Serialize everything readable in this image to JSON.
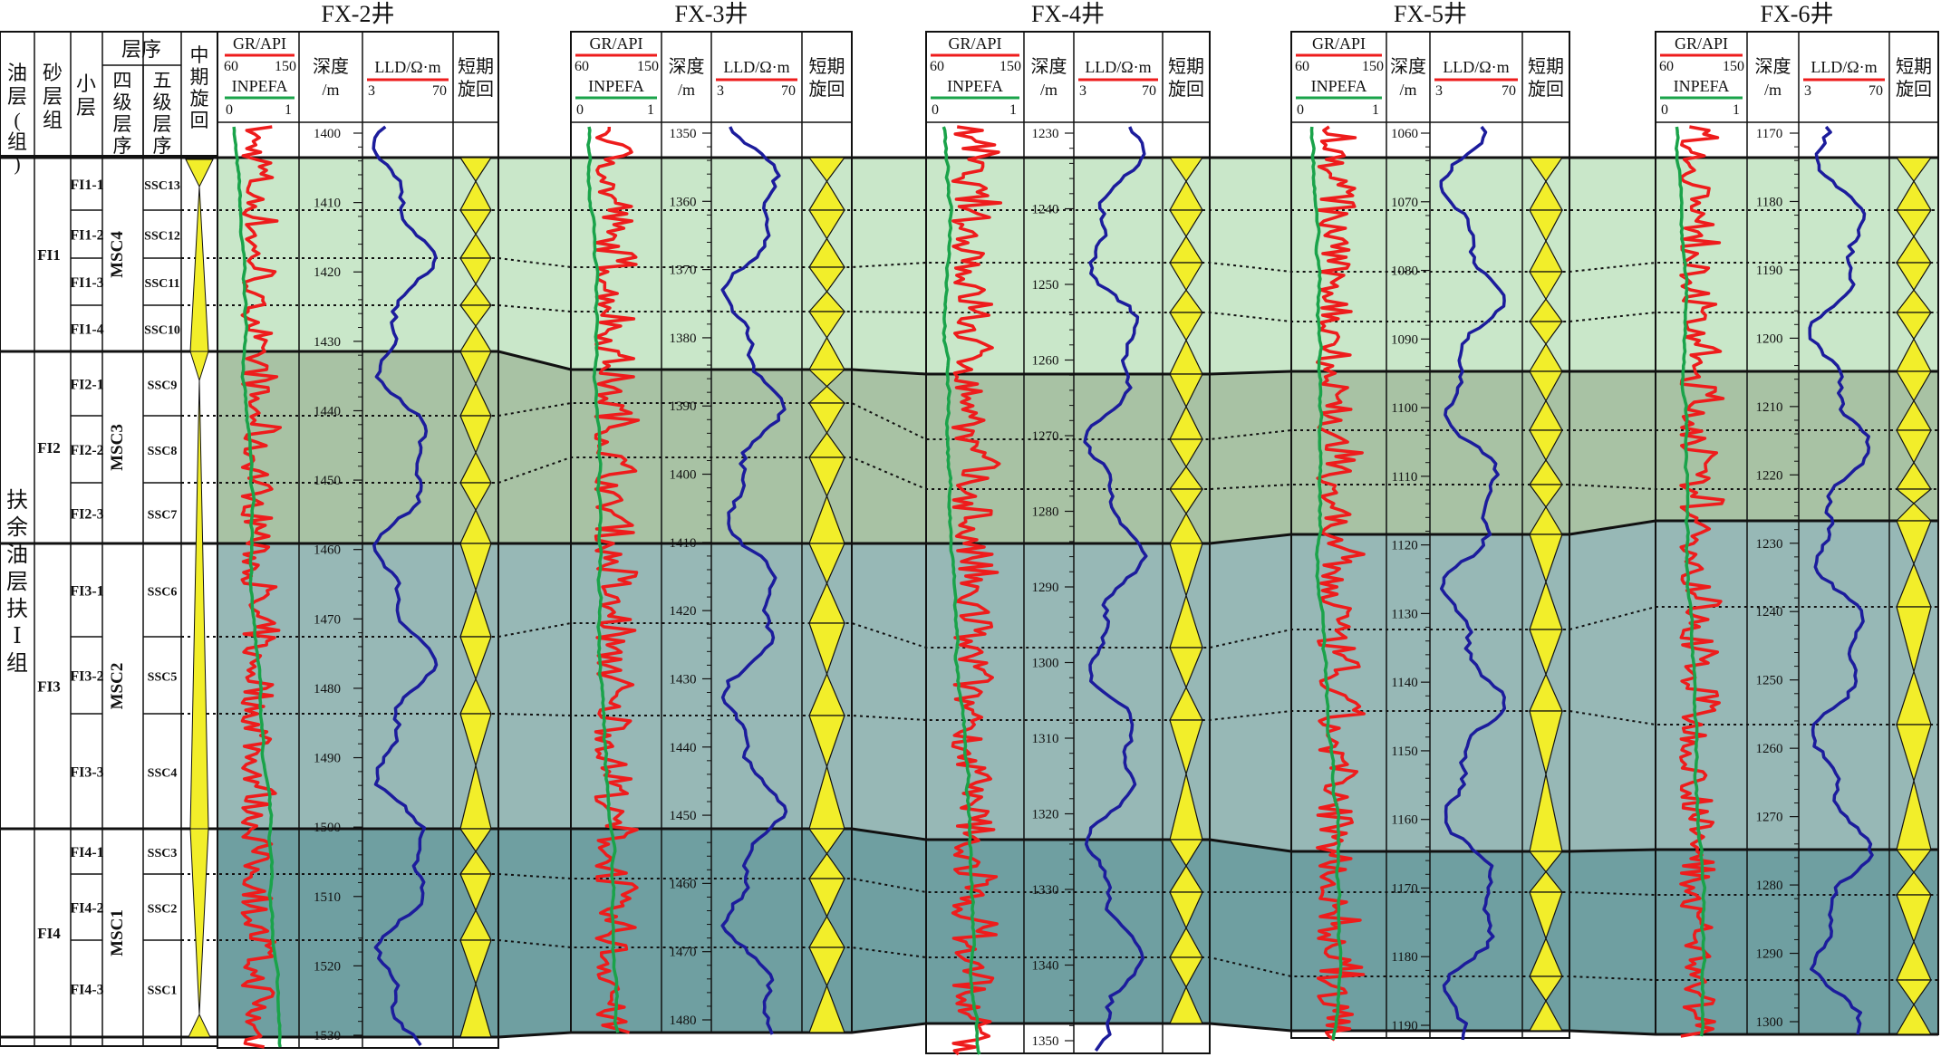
{
  "left_table": {
    "col_oil_layer": "油层(组)",
    "col_sand_group": "砂层组",
    "col_sublayer": "小层",
    "col_sequence": "层序",
    "col_fourth_order": "四级层序",
    "col_fifth_order": "五级层序",
    "col_mid_cycle": "中期旋回",
    "oil_layer_name": "扶余油层扶Ⅰ组",
    "sand_groups": [
      "FI1",
      "FI2",
      "FI3",
      "FI4"
    ],
    "sublayers": [
      "FI1-1",
      "FI1-2",
      "FI1-3",
      "FI1-4",
      "FI2-1",
      "FI2-2",
      "FI2-3",
      "FI3-1",
      "FI3-2",
      "FI3-3",
      "FI4-1",
      "FI4-2",
      "FI4-3"
    ],
    "msc": [
      "MSC4",
      "MSC3",
      "MSC2",
      "MSC1"
    ],
    "ssc": [
      "SSC13",
      "SSC12",
      "SSC11",
      "SSC10",
      "SSC9",
      "SSC8",
      "SSC7",
      "SSC6",
      "SSC5",
      "SSC4",
      "SSC3",
      "SSC2",
      "SSC1"
    ]
  },
  "track_headers": {
    "gr": "GR/API",
    "gr_min": "60",
    "gr_max": "150",
    "inpefa": "INPEFA",
    "inpefa_min": "0",
    "inpefa_max": "1",
    "depth": "深度/m",
    "lld": "LLD/Ω·m",
    "lld_min": "3",
    "lld_max": "70",
    "short_cycle": "短期旋回"
  },
  "wells": [
    {
      "name": "FX-2井",
      "depth_ticks": [
        1400,
        1410,
        1420,
        1430,
        1440,
        1450,
        1460,
        1470,
        1480,
        1490,
        1500,
        1510,
        1520,
        1530
      ]
    },
    {
      "name": "FX-3井",
      "depth_ticks": [
        1350,
        1360,
        1370,
        1380,
        1390,
        1400,
        1410,
        1420,
        1430,
        1440,
        1450,
        1460,
        1470,
        1480
      ]
    },
    {
      "name": "FX-4井",
      "depth_ticks": [
        1230,
        1240,
        1250,
        1260,
        1270,
        1280,
        1290,
        1300,
        1310,
        1320,
        1330,
        1340,
        1350
      ]
    },
    {
      "name": "FX-5井",
      "depth_ticks": [
        1060,
        1070,
        1080,
        1090,
        1100,
        1110,
        1120,
        1130,
        1140,
        1150,
        1160,
        1170,
        1180,
        1190
      ]
    },
    {
      "name": "FX-6井",
      "depth_ticks": [
        1170,
        1180,
        1190,
        1200,
        1210,
        1220,
        1230,
        1240,
        1250,
        1260,
        1270,
        1280,
        1290,
        1300
      ]
    }
  ],
  "colors": {
    "msc4": "#c9e7c9",
    "msc3": "#a8c2a4",
    "msc2": "#97b8b6",
    "msc1": "#6f9fa1",
    "gr_curve": "#ee1c1c",
    "inpefa_curve": "#1aa34a",
    "lld_curve": "#1c1c9c",
    "triangle": "#f2ee2a"
  }
}
